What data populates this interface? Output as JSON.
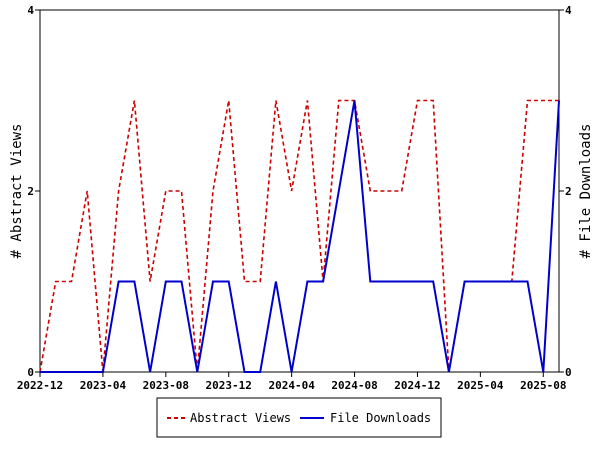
{
  "chart_data": {
    "type": "line",
    "x": [
      "2022-12",
      "2023-01",
      "2023-02",
      "2023-03",
      "2023-04",
      "2023-05",
      "2023-06",
      "2023-07",
      "2023-08",
      "2023-09",
      "2023-10",
      "2023-11",
      "2023-12",
      "2024-01",
      "2024-02",
      "2024-03",
      "2024-04",
      "2024-05",
      "2024-06",
      "2024-07",
      "2024-08",
      "2024-09",
      "2024-10",
      "2024-11",
      "2024-12",
      "2025-01",
      "2025-02",
      "2025-03",
      "2025-04",
      "2025-05",
      "2025-06",
      "2025-07",
      "2025-08",
      "2025-09"
    ],
    "series": [
      {
        "name": "Abstract Views",
        "axis": "left",
        "color": "#cc0000",
        "dash": "dashed",
        "values": [
          0,
          1,
          1,
          2,
          0,
          2,
          3,
          1,
          2,
          2,
          0,
          2,
          3,
          1,
          1,
          3,
          2,
          3,
          1,
          3,
          3,
          2,
          2,
          2,
          3,
          3,
          0,
          1,
          1,
          1,
          1,
          3,
          3,
          3
        ]
      },
      {
        "name": "File Downloads",
        "axis": "right",
        "color": "#0000cc",
        "dash": "solid",
        "values": [
          0,
          0,
          0,
          0,
          0,
          1,
          1,
          0,
          1,
          1,
          0,
          1,
          1,
          0,
          0,
          1,
          0,
          1,
          1,
          2,
          3,
          1,
          1,
          1,
          1,
          1,
          0,
          1,
          1,
          1,
          1,
          1,
          0,
          3
        ]
      }
    ],
    "xticks": [
      "2022-12",
      "2023-04",
      "2023-08",
      "2023-12",
      "2024-04",
      "2024-08",
      "2024-12",
      "2025-04",
      "2025-08"
    ],
    "yticks_left": [
      "0",
      "2",
      "4"
    ],
    "yticks_right": [
      "0",
      "2",
      "4"
    ],
    "ylabel": "# Abstract Views",
    "ylabel_right": "# File Downloads",
    "ylim": [
      0,
      4
    ],
    "ylim_right": [
      0,
      4
    ],
    "grid": false,
    "legend_position": "bottom",
    "legend": [
      "Abstract Views",
      "File Downloads"
    ]
  }
}
